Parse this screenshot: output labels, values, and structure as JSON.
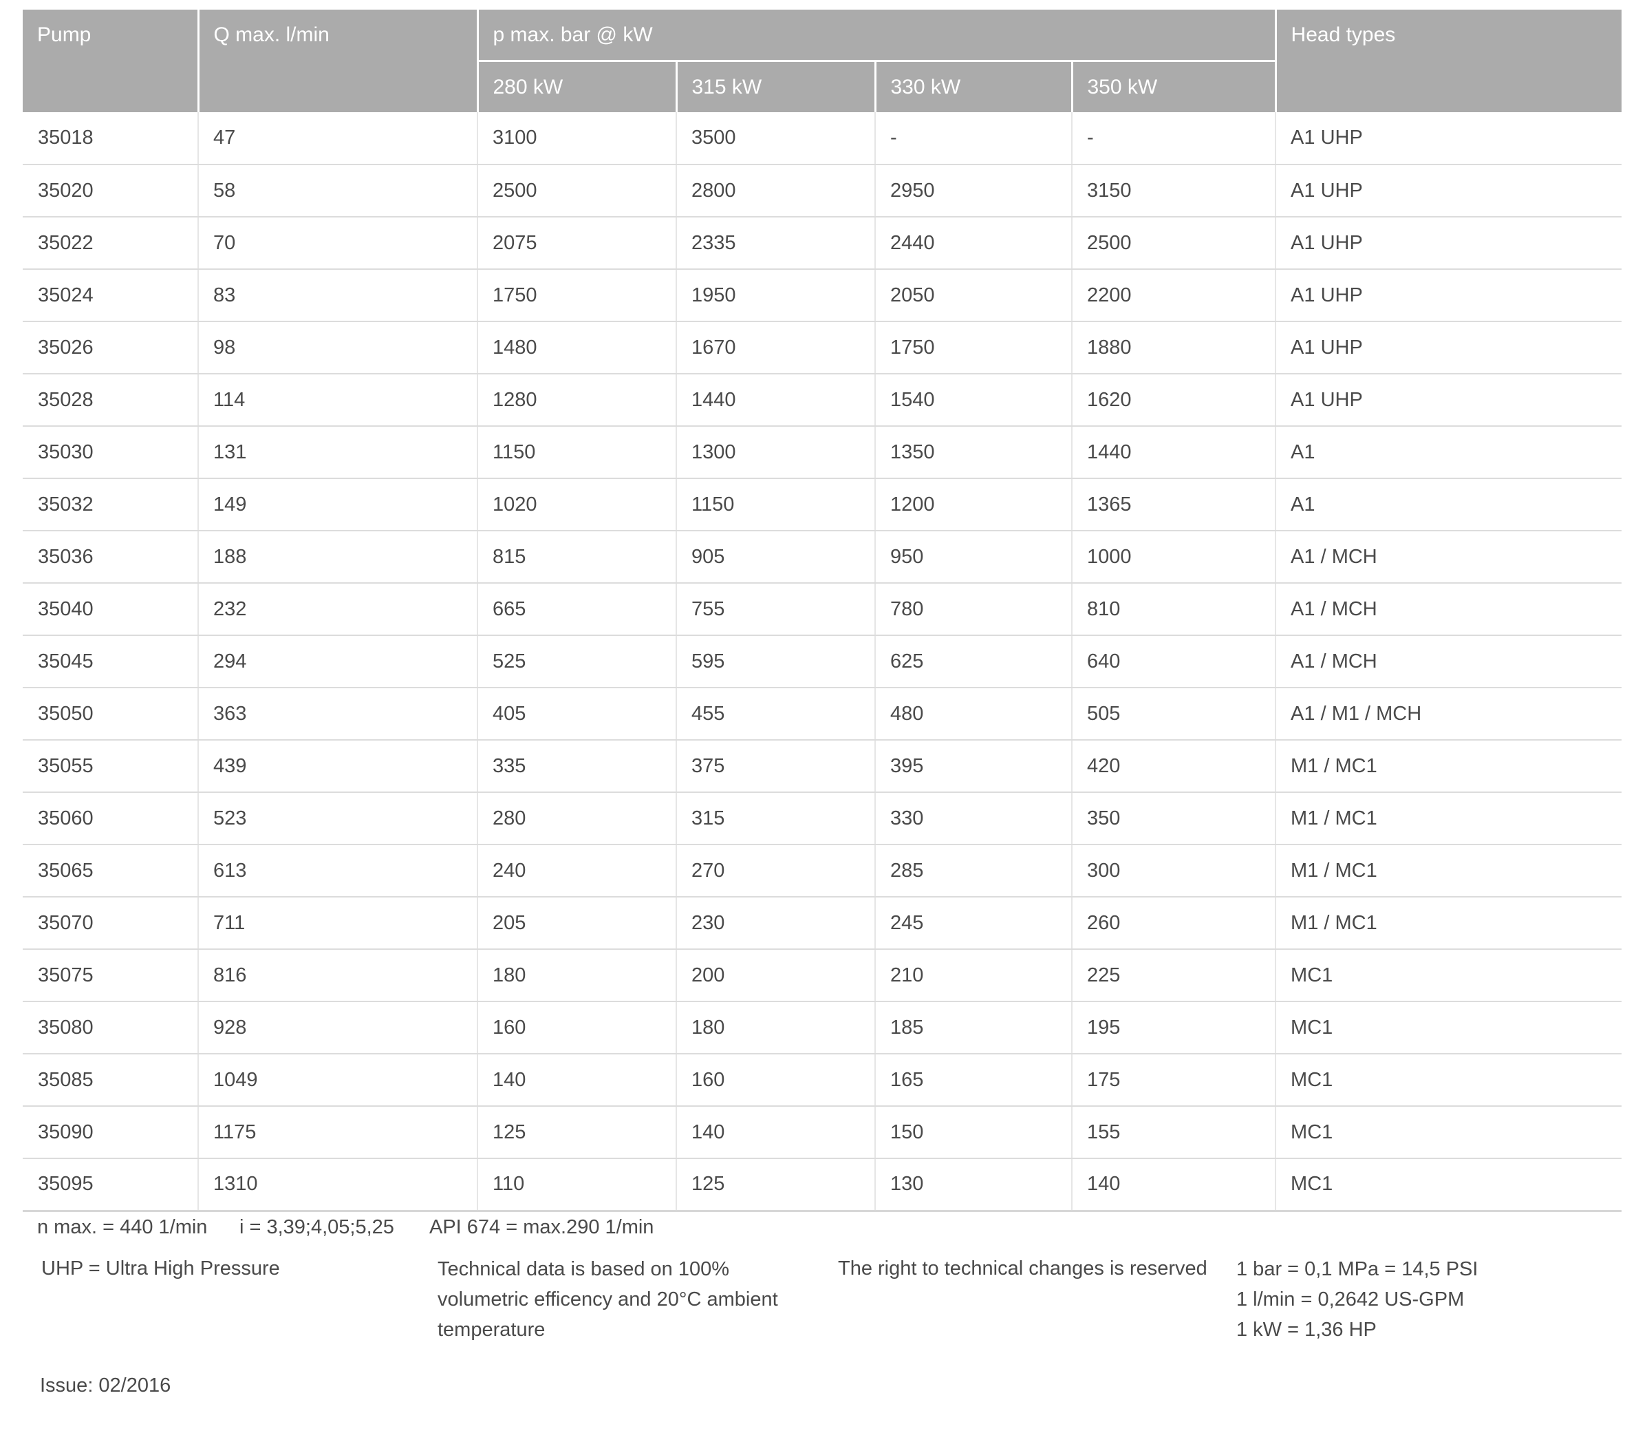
{
  "table": {
    "columns": {
      "pump": "Pump",
      "qmax": "Q max. l/min",
      "pmax_group": "p max. bar @ kW",
      "kw": [
        "280 kW",
        "315 kW",
        "330 kW",
        "350 kW"
      ],
      "head": "Head types"
    },
    "rows": [
      {
        "pump": "35018",
        "qmax": "47",
        "kw": [
          "3100",
          "3500",
          "-",
          "-"
        ],
        "head": "A1 UHP"
      },
      {
        "pump": "35020",
        "qmax": "58",
        "kw": [
          "2500",
          "2800",
          "2950",
          "3150"
        ],
        "head": "A1 UHP"
      },
      {
        "pump": "35022",
        "qmax": "70",
        "kw": [
          "2075",
          "2335",
          "2440",
          "2500"
        ],
        "head": "A1 UHP"
      },
      {
        "pump": "35024",
        "qmax": "83",
        "kw": [
          "1750",
          "1950",
          "2050",
          "2200"
        ],
        "head": "A1 UHP"
      },
      {
        "pump": "35026",
        "qmax": "98",
        "kw": [
          "1480",
          "1670",
          "1750",
          "1880"
        ],
        "head": "A1 UHP"
      },
      {
        "pump": "35028",
        "qmax": "114",
        "kw": [
          "1280",
          "1440",
          "1540",
          "1620"
        ],
        "head": "A1 UHP"
      },
      {
        "pump": "35030",
        "qmax": "131",
        "kw": [
          "1150",
          "1300",
          "1350",
          "1440"
        ],
        "head": "A1"
      },
      {
        "pump": "35032",
        "qmax": "149",
        "kw": [
          "1020",
          "1150",
          "1200",
          "1365"
        ],
        "head": "A1"
      },
      {
        "pump": "35036",
        "qmax": "188",
        "kw": [
          "815",
          "905",
          "950",
          "1000"
        ],
        "head": "A1 / MCH"
      },
      {
        "pump": "35040",
        "qmax": "232",
        "kw": [
          "665",
          "755",
          "780",
          "810"
        ],
        "head": "A1 / MCH"
      },
      {
        "pump": "35045",
        "qmax": "294",
        "kw": [
          "525",
          "595",
          "625",
          "640"
        ],
        "head": "A1 / MCH"
      },
      {
        "pump": "35050",
        "qmax": "363",
        "kw": [
          "405",
          "455",
          "480",
          "505"
        ],
        "head": "A1 / M1 / MCH"
      },
      {
        "pump": "35055",
        "qmax": "439",
        "kw": [
          "335",
          "375",
          "395",
          "420"
        ],
        "head": "M1 / MC1"
      },
      {
        "pump": "35060",
        "qmax": "523",
        "kw": [
          "280",
          "315",
          "330",
          "350"
        ],
        "head": "M1 / MC1"
      },
      {
        "pump": "35065",
        "qmax": "613",
        "kw": [
          "240",
          "270",
          "285",
          "300"
        ],
        "head": "M1 / MC1"
      },
      {
        "pump": "35070",
        "qmax": "711",
        "kw": [
          "205",
          "230",
          "245",
          "260"
        ],
        "head": "M1 / MC1"
      },
      {
        "pump": "35075",
        "qmax": "816",
        "kw": [
          "180",
          "200",
          "210",
          "225"
        ],
        "head": "MC1"
      },
      {
        "pump": "35080",
        "qmax": "928",
        "kw": [
          "160",
          "180",
          "185",
          "195"
        ],
        "head": "MC1"
      },
      {
        "pump": "35085",
        "qmax": "1049",
        "kw": [
          "140",
          "160",
          "165",
          "175"
        ],
        "head": "MC1"
      },
      {
        "pump": "35090",
        "qmax": "1175",
        "kw": [
          "125",
          "140",
          "150",
          "155"
        ],
        "head": "MC1"
      },
      {
        "pump": "35095",
        "qmax": "1310",
        "kw": [
          "110",
          "125",
          "130",
          "140"
        ],
        "head": "MC1"
      }
    ]
  },
  "footnotes": {
    "spec_n_max": "n max. = 440 1/min",
    "spec_i": "i = 3,39;4,05;5,25",
    "spec_api": "API 674 = max.290 1/min",
    "uhp": "UHP = Ultra High Pressure",
    "technical": "Technical data is based on 100% volumetric efficency and 20°C ambient temperature",
    "rights": "The right to technical changes is reserved",
    "conv_bar": "1 bar = 0,1 MPa = 14,5 PSI",
    "conv_lmin": "1 l/min = 0,2642 US-GPM",
    "conv_kw": "1 kW = 1,36 HP",
    "issue": "Issue: 02/2016"
  },
  "colors": {
    "header_bg": "#ababab",
    "header_text": "#ffffff",
    "body_text": "#4a4a4a",
    "row_border": "#dcdcdc",
    "col_border": "#e6e6e6",
    "table_bottom_border": "#d7d7d7"
  }
}
